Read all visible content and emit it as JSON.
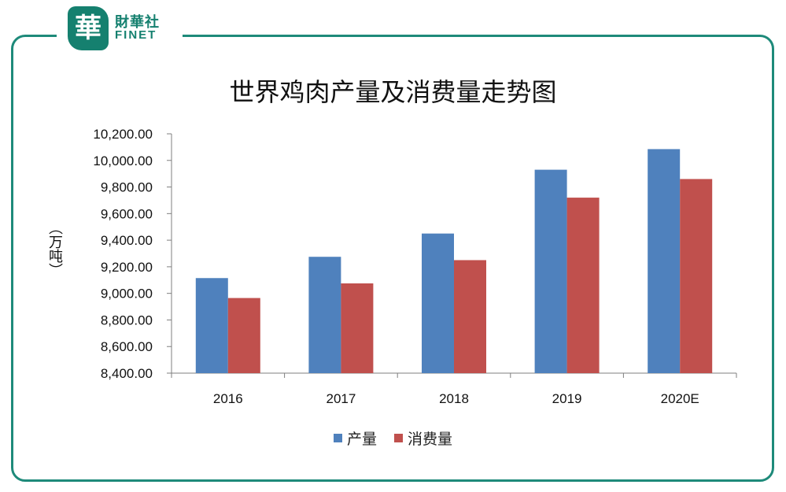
{
  "brand": {
    "seal_char": "華",
    "name_cn": "財華社",
    "name_en": "FINET"
  },
  "colors": {
    "frame": "#1e8a7a",
    "production": "#4f81bd",
    "consumption": "#c0504d",
    "axis": "#7f7f7f"
  },
  "chart_data": {
    "type": "bar",
    "title": "世界鸡肉产量及消费量走势图",
    "xlabel": "",
    "ylabel": "（万吨）",
    "categories": [
      "2016",
      "2017",
      "2018",
      "2019",
      "2020E"
    ],
    "series": [
      {
        "name": "产量",
        "values": [
          9115,
          9275,
          9450,
          9930,
          10085
        ]
      },
      {
        "name": "消费量",
        "values": [
          8965,
          9075,
          9250,
          9720,
          9860
        ]
      }
    ],
    "ylim": [
      8400,
      10200
    ],
    "yticks": [
      "8,400.00",
      "8,600.00",
      "8,800.00",
      "9,000.00",
      "9,200.00",
      "9,400.00",
      "9,600.00",
      "9,800.00",
      "10,000.00",
      "10,200.00"
    ],
    "ytick_values": [
      8400,
      8600,
      8800,
      9000,
      9200,
      9400,
      9600,
      9800,
      10000,
      10200
    ],
    "grid": false,
    "legend_position": "bottom"
  }
}
